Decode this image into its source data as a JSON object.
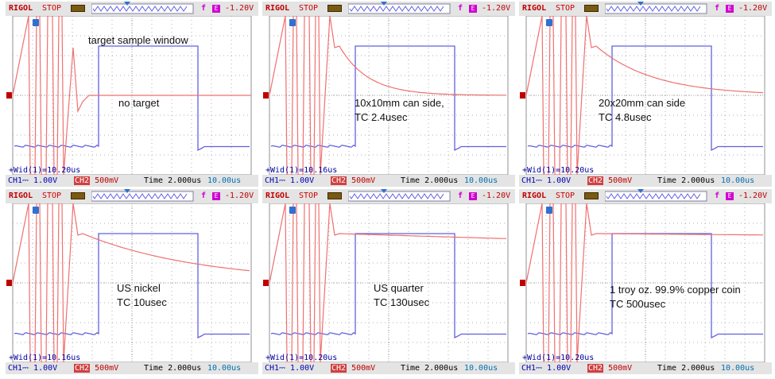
{
  "header": {
    "brand": "RIGOL",
    "status": "STOP",
    "trigger_edge": "f",
    "trigger_channel": "E",
    "trigger_level": "-1.20V"
  },
  "footer": {
    "ch1": "CH1⎓ 1.00V",
    "ch2_tag": "CH2",
    "ch2_scale": "500mV",
    "time": "Time 2.000us",
    "time_pos": "10.00us"
  },
  "colors": {
    "ch1": "#6060e0",
    "ch2": "#f07070",
    "grid": "#b0b0b0"
  },
  "icons": [
    "battery-icon",
    "trigger-edge-icon",
    "trigger-marker-icon",
    "ch2-marker-icon"
  ],
  "panels": [
    {
      "annotation": [
        "target sample window"
      ],
      "annotation2": [
        "no target"
      ],
      "measure": "+Wid(1)=10.20us",
      "decay_tc_us": null
    },
    {
      "annotation": [
        "10x10mm can side,",
        "TC 2.4usec"
      ],
      "annotation2": [],
      "measure": "+Wid(1)=10.16us",
      "decay_tc_us": 2.4
    },
    {
      "annotation": [
        "20x20mm can side",
        "TC 4.8usec"
      ],
      "annotation2": [],
      "measure": "+Wid(1)=10.20us",
      "decay_tc_us": 4.8
    },
    {
      "annotation": [
        "US nickel",
        "TC 10usec"
      ],
      "annotation2": [],
      "measure": "+Wid(1)=10.16us",
      "decay_tc_us": 10
    },
    {
      "annotation": [
        "US quarter",
        "TC 130usec"
      ],
      "annotation2": [],
      "measure": "+Wid(1)=10.20us",
      "decay_tc_us": 130
    },
    {
      "annotation": [
        "1 troy oz. 99.9% copper coin",
        "TC 500usec"
      ],
      "annotation2": [],
      "measure": "+Wid(1)=10.20us",
      "decay_tc_us": 500
    }
  ]
}
